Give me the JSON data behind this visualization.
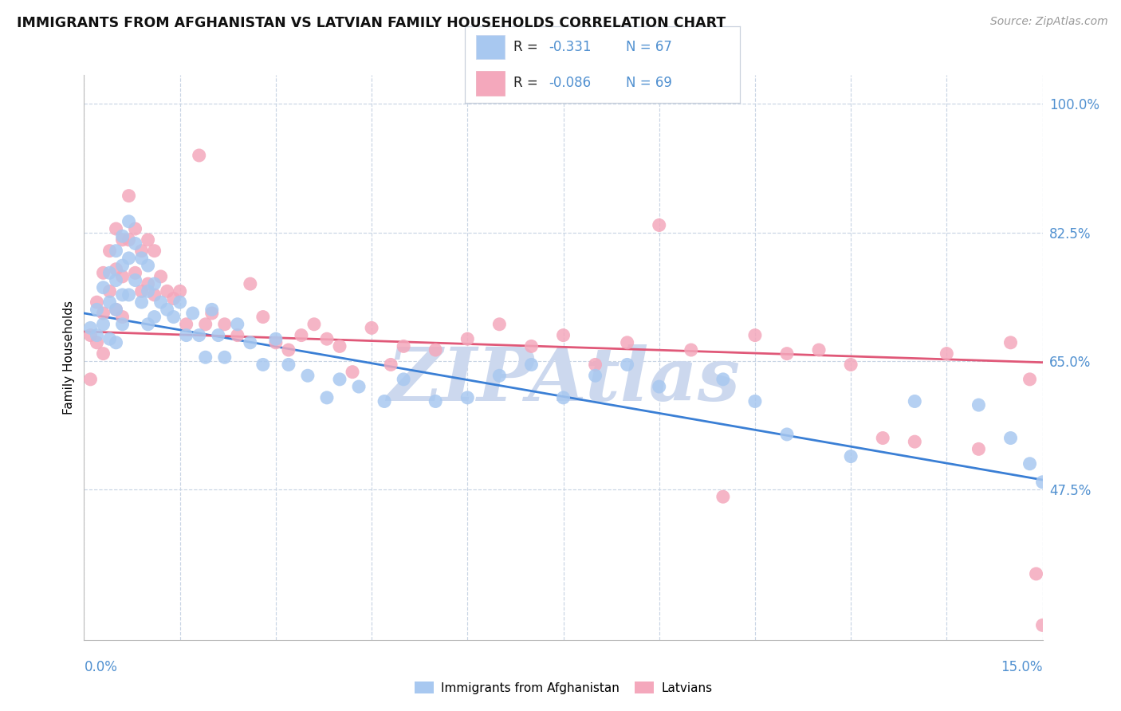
{
  "title": "IMMIGRANTS FROM AFGHANISTAN VS LATVIAN FAMILY HOUSEHOLDS CORRELATION CHART",
  "source": "Source: ZipAtlas.com",
  "ylabel": "Family Households",
  "color_blue": "#a8c8f0",
  "color_pink": "#f4a8bc",
  "color_blue_line": "#3a7fd5",
  "color_pink_line": "#e05878",
  "color_label": "#5090d0",
  "color_grid": "#c8d4e4",
  "legend_label1": "Immigrants from Afghanistan",
  "legend_label2": "Latvians",
  "watermark": "ZIPAtlas",
  "watermark_color": "#ccd8ee",
  "xmin": 0.0,
  "xmax": 0.15,
  "ymin": 0.27,
  "ymax": 1.04,
  "ytick_vals": [
    1.0,
    0.825,
    0.65,
    0.475
  ],
  "ytick_labels": [
    "100.0%",
    "82.5%",
    "65.0%",
    "47.5%"
  ],
  "xtick_labels": [
    "0.0%",
    "15.0%"
  ],
  "blue_trend_x": [
    0.0,
    0.15
  ],
  "blue_trend_y": [
    0.715,
    0.488
  ],
  "pink_trend_x": [
    0.0,
    0.15
  ],
  "pink_trend_y": [
    0.69,
    0.648
  ],
  "blue_x": [
    0.001,
    0.002,
    0.002,
    0.003,
    0.003,
    0.004,
    0.004,
    0.004,
    0.005,
    0.005,
    0.005,
    0.005,
    0.006,
    0.006,
    0.006,
    0.006,
    0.007,
    0.007,
    0.007,
    0.008,
    0.008,
    0.009,
    0.009,
    0.01,
    0.01,
    0.01,
    0.011,
    0.011,
    0.012,
    0.013,
    0.014,
    0.015,
    0.016,
    0.017,
    0.018,
    0.019,
    0.02,
    0.021,
    0.022,
    0.024,
    0.026,
    0.028,
    0.03,
    0.032,
    0.035,
    0.038,
    0.04,
    0.043,
    0.047,
    0.05,
    0.055,
    0.06,
    0.065,
    0.07,
    0.075,
    0.08,
    0.085,
    0.09,
    0.1,
    0.105,
    0.11,
    0.12,
    0.13,
    0.14,
    0.145,
    0.148,
    0.15
  ],
  "blue_y": [
    0.695,
    0.72,
    0.685,
    0.75,
    0.7,
    0.77,
    0.73,
    0.68,
    0.8,
    0.76,
    0.72,
    0.675,
    0.82,
    0.78,
    0.74,
    0.7,
    0.84,
    0.79,
    0.74,
    0.81,
    0.76,
    0.79,
    0.73,
    0.78,
    0.745,
    0.7,
    0.755,
    0.71,
    0.73,
    0.72,
    0.71,
    0.73,
    0.685,
    0.715,
    0.685,
    0.655,
    0.72,
    0.685,
    0.655,
    0.7,
    0.675,
    0.645,
    0.68,
    0.645,
    0.63,
    0.6,
    0.625,
    0.615,
    0.595,
    0.625,
    0.595,
    0.6,
    0.63,
    0.645,
    0.6,
    0.63,
    0.645,
    0.615,
    0.625,
    0.595,
    0.55,
    0.52,
    0.595,
    0.59,
    0.545,
    0.51,
    0.485
  ],
  "pink_x": [
    0.001,
    0.001,
    0.002,
    0.002,
    0.003,
    0.003,
    0.003,
    0.004,
    0.004,
    0.005,
    0.005,
    0.005,
    0.006,
    0.006,
    0.006,
    0.007,
    0.007,
    0.008,
    0.008,
    0.009,
    0.009,
    0.01,
    0.01,
    0.011,
    0.011,
    0.012,
    0.013,
    0.014,
    0.015,
    0.016,
    0.018,
    0.019,
    0.02,
    0.022,
    0.024,
    0.026,
    0.028,
    0.03,
    0.032,
    0.034,
    0.036,
    0.038,
    0.04,
    0.042,
    0.045,
    0.048,
    0.05,
    0.055,
    0.06,
    0.065,
    0.07,
    0.075,
    0.08,
    0.085,
    0.09,
    0.095,
    0.1,
    0.105,
    0.11,
    0.115,
    0.12,
    0.125,
    0.13,
    0.135,
    0.14,
    0.145,
    0.148,
    0.149,
    0.15
  ],
  "pink_y": [
    0.685,
    0.625,
    0.73,
    0.675,
    0.77,
    0.715,
    0.66,
    0.8,
    0.745,
    0.83,
    0.775,
    0.72,
    0.815,
    0.765,
    0.71,
    0.875,
    0.815,
    0.83,
    0.77,
    0.8,
    0.745,
    0.815,
    0.755,
    0.8,
    0.74,
    0.765,
    0.745,
    0.735,
    0.745,
    0.7,
    0.93,
    0.7,
    0.715,
    0.7,
    0.685,
    0.755,
    0.71,
    0.675,
    0.665,
    0.685,
    0.7,
    0.68,
    0.67,
    0.635,
    0.695,
    0.645,
    0.67,
    0.665,
    0.68,
    0.7,
    0.67,
    0.685,
    0.645,
    0.675,
    0.835,
    0.665,
    0.465,
    0.685,
    0.66,
    0.665,
    0.645,
    0.545,
    0.54,
    0.66,
    0.53,
    0.675,
    0.625,
    0.36,
    0.29
  ]
}
